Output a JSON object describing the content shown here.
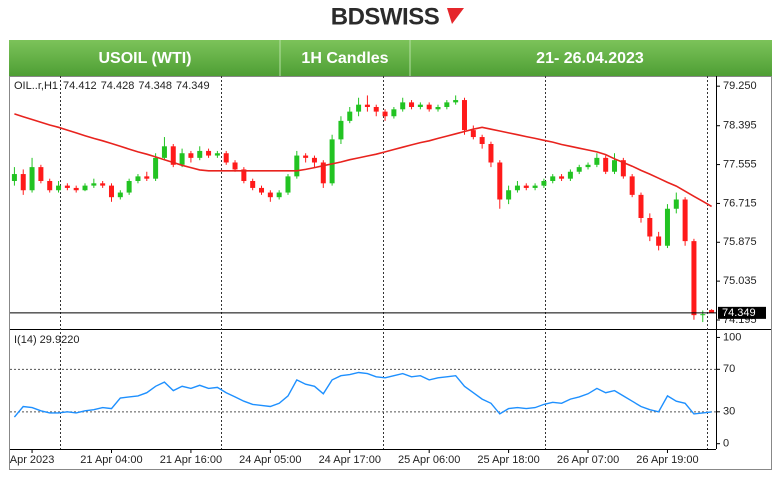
{
  "logo": "BDSWISS",
  "header": {
    "symbol": "USOIL (WTI)",
    "timeframe": "1H Candles",
    "dates": "21- 26.04.2023"
  },
  "chart_data": [
    {
      "type": "candlestick",
      "symbol_label": "OIL..r,H1",
      "categories": [
        null,
        null,
        "Apr 2023",
        null,
        null,
        null,
        null,
        null,
        null,
        null,
        null,
        "21 Apr 04:00",
        null,
        null,
        null,
        null,
        null,
        null,
        null,
        null,
        "21 Apr 16:00",
        null,
        null,
        null,
        null,
        null,
        null,
        null,
        null,
        "24 Apr 05:00",
        null,
        null,
        null,
        null,
        null,
        null,
        null,
        null,
        "24 Apr 17:00",
        null,
        null,
        null,
        null,
        null,
        null,
        null,
        null,
        "25 Apr 06:00",
        null,
        null,
        null,
        null,
        null,
        null,
        null,
        null,
        "25 Apr 18:00",
        null,
        null,
        null,
        null,
        null,
        null,
        null,
        null,
        "26 Apr 07:00",
        null,
        null,
        null,
        null,
        null,
        null,
        null,
        null,
        "26 Apr 19:00",
        null,
        null,
        null,
        null,
        null
      ],
      "ohlc": [
        [
          77.2,
          77.5,
          77.1,
          77.35
        ],
        [
          77.35,
          77.45,
          76.9,
          77.0
        ],
        [
          77.0,
          77.7,
          76.95,
          77.5
        ],
        [
          77.5,
          77.55,
          77.15,
          77.2
        ],
        [
          77.2,
          77.25,
          76.95,
          77.0
        ],
        [
          77.0,
          77.2,
          76.95,
          77.1
        ],
        [
          77.1,
          77.15,
          77.0,
          77.05
        ],
        [
          77.05,
          77.1,
          76.95,
          77.0
        ],
        [
          77.0,
          77.15,
          76.98,
          77.1
        ],
        [
          77.1,
          77.25,
          77.05,
          77.15
        ],
        [
          77.15,
          77.2,
          77.05,
          77.1
        ],
        [
          77.1,
          77.15,
          76.75,
          76.85
        ],
        [
          76.85,
          77.0,
          76.8,
          76.95
        ],
        [
          76.95,
          77.25,
          76.9,
          77.2
        ],
        [
          77.2,
          77.35,
          77.15,
          77.3
        ],
        [
          77.3,
          77.4,
          77.2,
          77.25
        ],
        [
          77.25,
          77.8,
          77.2,
          77.7
        ],
        [
          77.7,
          78.15,
          77.65,
          77.95
        ],
        [
          77.95,
          78.0,
          77.5,
          77.55
        ],
        [
          77.55,
          77.9,
          77.5,
          77.8
        ],
        [
          77.8,
          77.85,
          77.6,
          77.7
        ],
        [
          77.7,
          77.95,
          77.65,
          77.85
        ],
        [
          77.85,
          77.9,
          77.7,
          77.75
        ],
        [
          77.75,
          77.85,
          77.7,
          77.8
        ],
        [
          77.8,
          77.85,
          77.55,
          77.6
        ],
        [
          77.6,
          77.65,
          77.4,
          77.45
        ],
        [
          77.45,
          77.5,
          77.15,
          77.2
        ],
        [
          77.2,
          77.25,
          77.0,
          77.05
        ],
        [
          77.05,
          77.1,
          76.9,
          76.95
        ],
        [
          76.95,
          77.0,
          76.75,
          76.85
        ],
        [
          76.85,
          77.0,
          76.8,
          76.95
        ],
        [
          76.95,
          77.35,
          76.9,
          77.3
        ],
        [
          77.3,
          77.85,
          77.25,
          77.75
        ],
        [
          77.75,
          77.8,
          77.6,
          77.7
        ],
        [
          77.7,
          77.75,
          77.5,
          77.6
        ],
        [
          77.6,
          77.65,
          77.05,
          77.15
        ],
        [
          77.15,
          78.2,
          77.1,
          78.1
        ],
        [
          78.1,
          78.6,
          78.0,
          78.5
        ],
        [
          78.5,
          78.8,
          78.45,
          78.7
        ],
        [
          78.7,
          79.0,
          78.6,
          78.85
        ],
        [
          78.85,
          79.05,
          78.7,
          78.8
        ],
        [
          78.8,
          78.85,
          78.6,
          78.7
        ],
        [
          78.7,
          78.75,
          78.5,
          78.6
        ],
        [
          78.6,
          78.8,
          78.55,
          78.75
        ],
        [
          78.75,
          79.0,
          78.7,
          78.9
        ],
        [
          78.9,
          78.95,
          78.75,
          78.8
        ],
        [
          78.8,
          78.9,
          78.75,
          78.85
        ],
        [
          78.85,
          78.9,
          78.7,
          78.75
        ],
        [
          78.75,
          78.85,
          78.7,
          78.8
        ],
        [
          78.8,
          78.95,
          78.75,
          78.9
        ],
        [
          78.9,
          79.05,
          78.85,
          78.95
        ],
        [
          78.95,
          79.0,
          78.2,
          78.3
        ],
        [
          78.3,
          78.4,
          78.1,
          78.15
        ],
        [
          78.15,
          78.2,
          77.9,
          78.0
        ],
        [
          78.0,
          78.05,
          77.5,
          77.6
        ],
        [
          77.6,
          77.65,
          76.6,
          76.8
        ],
        [
          76.8,
          77.1,
          76.7,
          77.0
        ],
        [
          77.0,
          77.2,
          76.95,
          77.1
        ],
        [
          77.1,
          77.15,
          77.0,
          77.05
        ],
        [
          77.05,
          77.15,
          77.0,
          77.1
        ],
        [
          77.1,
          77.25,
          77.05,
          77.2
        ],
        [
          77.2,
          77.35,
          77.15,
          77.3
        ],
        [
          77.3,
          77.35,
          77.2,
          77.25
        ],
        [
          77.25,
          77.45,
          77.2,
          77.4
        ],
        [
          77.4,
          77.55,
          77.35,
          77.5
        ],
        [
          77.5,
          77.6,
          77.45,
          77.55
        ],
        [
          77.55,
          77.8,
          77.5,
          77.7
        ],
        [
          77.7,
          77.75,
          77.35,
          77.4
        ],
        [
          77.4,
          77.8,
          77.35,
          77.65
        ],
        [
          77.65,
          77.7,
          77.25,
          77.3
        ],
        [
          77.3,
          77.35,
          76.85,
          76.9
        ],
        [
          76.9,
          76.95,
          76.3,
          76.4
        ],
        [
          76.4,
          76.5,
          75.9,
          76.0
        ],
        [
          76.0,
          76.1,
          75.7,
          75.8
        ],
        [
          75.8,
          76.7,
          75.75,
          76.6
        ],
        [
          76.6,
          76.95,
          76.5,
          76.8
        ],
        [
          76.8,
          76.85,
          75.8,
          75.9
        ],
        [
          75.9,
          75.95,
          74.2,
          74.3
        ],
        [
          74.3,
          74.4,
          74.15,
          74.32
        ],
        [
          74.412,
          74.428,
          74.348,
          74.349
        ]
      ],
      "up_color": "#22c322",
      "down_color": "#ff1a1a",
      "ma": {
        "color": "#e8231e",
        "values": [
          78.65,
          78.59,
          78.53,
          78.47,
          78.41,
          78.36,
          78.3,
          78.24,
          78.18,
          78.12,
          78.07,
          78.01,
          77.95,
          77.89,
          77.83,
          77.78,
          77.72,
          77.66,
          77.6,
          77.54,
          77.49,
          77.44,
          77.42,
          77.42,
          77.42,
          77.42,
          77.42,
          77.42,
          77.42,
          77.42,
          77.42,
          77.42,
          77.42,
          77.45,
          77.49,
          77.53,
          77.57,
          77.61,
          77.66,
          77.7,
          77.74,
          77.78,
          77.83,
          77.88,
          77.93,
          77.98,
          78.03,
          78.07,
          78.12,
          78.17,
          78.22,
          78.27,
          78.32,
          78.36,
          78.32,
          78.28,
          78.24,
          78.2,
          78.16,
          78.12,
          78.08,
          78.04,
          77.99,
          77.95,
          77.91,
          77.87,
          77.83,
          77.77,
          77.68,
          77.6,
          77.52,
          77.43,
          77.35,
          77.26,
          77.17,
          77.09,
          76.98,
          76.87,
          76.76,
          76.65
        ]
      },
      "price_line": 74.349,
      "ylim": [
        74.0,
        79.47
      ],
      "yticks": [
        {
          "value": 79.25,
          "label": "79.250"
        },
        78.395,
        77.555,
        76.715,
        75.875,
        75.035,
        74.195
      ]
    },
    {
      "type": "line",
      "title": "I(14) 29.9220",
      "color": "#1e90ff",
      "values": [
        25,
        35,
        34,
        31,
        29,
        29,
        30,
        29,
        31,
        32,
        34,
        33,
        43,
        44,
        45,
        48,
        54,
        58,
        50,
        54,
        52,
        55,
        52,
        53,
        48,
        44,
        40,
        37,
        36,
        35,
        38,
        45,
        60,
        56,
        54,
        47,
        60,
        64,
        65,
        67,
        66,
        63,
        62,
        64,
        66,
        63,
        64,
        60,
        62,
        63,
        64,
        54,
        48,
        42,
        38,
        28,
        33,
        34,
        33,
        34,
        37,
        39,
        38,
        42,
        44,
        47,
        52,
        48,
        50,
        45,
        40,
        35,
        32,
        30,
        45,
        40,
        38,
        28,
        29,
        29.922
      ],
      "ylim": [
        -5,
        107
      ],
      "yticks": [
        100,
        70,
        30,
        0
      ]
    }
  ]
}
